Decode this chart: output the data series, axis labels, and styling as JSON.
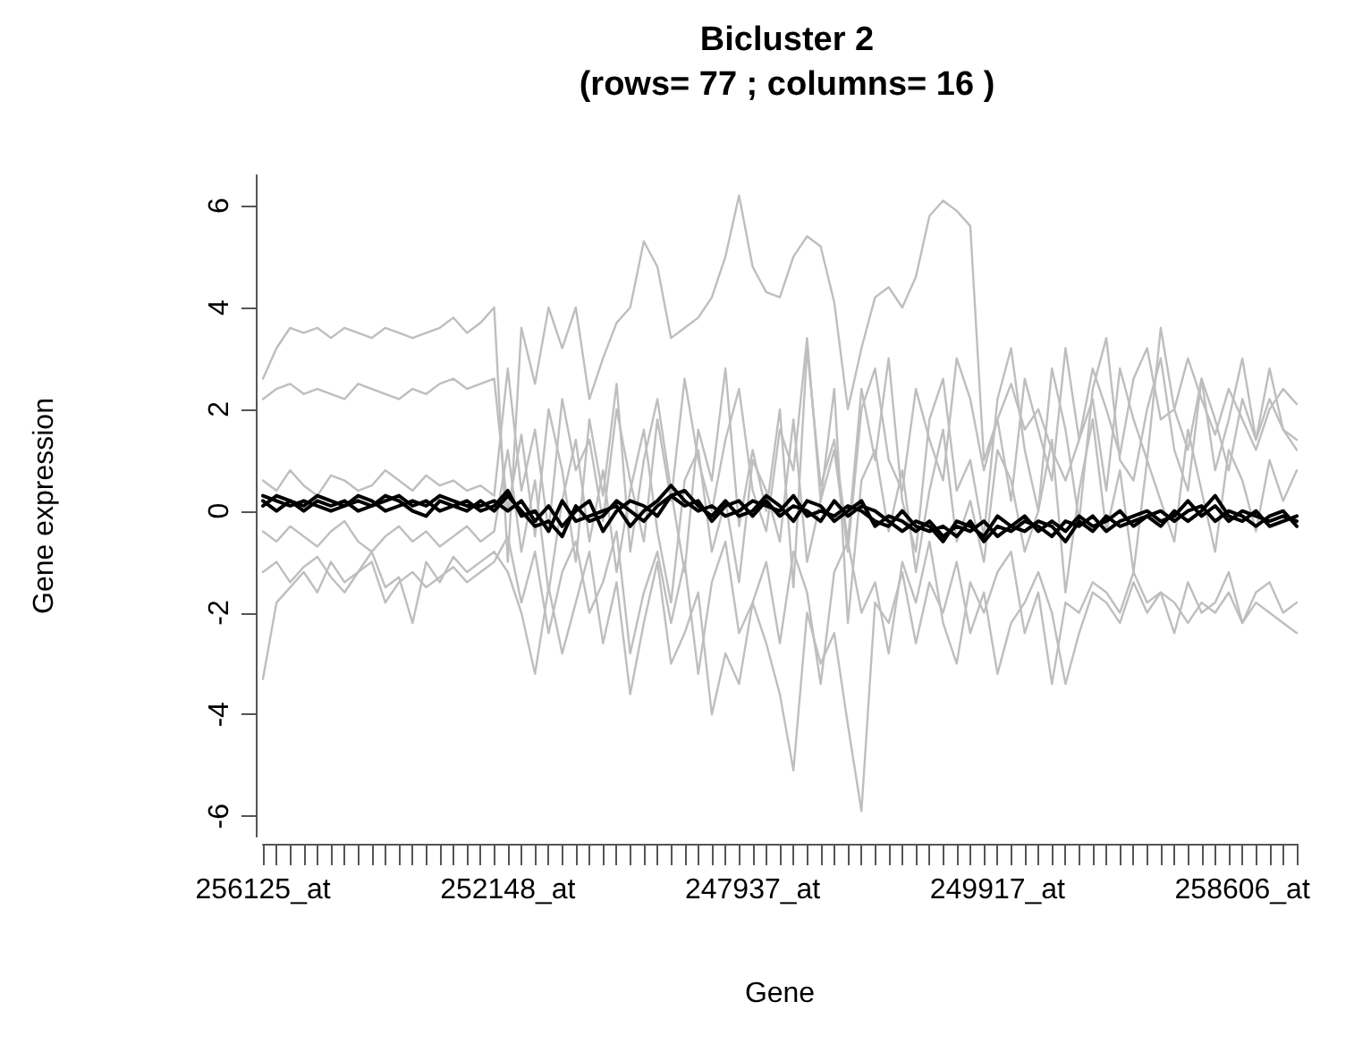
{
  "chart_data": {
    "type": "line",
    "title": "Bicluster 2",
    "subtitle": "(rows= 77 ; columns= 16 )",
    "xlabel": "Gene",
    "ylabel": "Gene expression",
    "categories": [
      "256125_at",
      null,
      null,
      null,
      null,
      null,
      null,
      null,
      null,
      null,
      null,
      null,
      null,
      null,
      null,
      null,
      null,
      null,
      "252148_at",
      null,
      null,
      null,
      null,
      null,
      null,
      null,
      null,
      null,
      null,
      null,
      null,
      null,
      null,
      null,
      null,
      null,
      "247937_at",
      null,
      null,
      null,
      null,
      null,
      null,
      null,
      null,
      null,
      null,
      null,
      null,
      null,
      null,
      null,
      null,
      null,
      "249917_at",
      null,
      null,
      null,
      null,
      null,
      null,
      null,
      null,
      null,
      null,
      null,
      null,
      null,
      null,
      null,
      null,
      null,
      "258606_at",
      null,
      null,
      null,
      null
    ],
    "ylim": [
      -6.4,
      6.6
    ],
    "yticks": [
      -6,
      -4,
      -2,
      0,
      2,
      4,
      6
    ],
    "marker": "none",
    "series": [
      {
        "color": "#bebebe",
        "values": [
          2.6,
          3.2,
          3.6,
          3.5,
          3.6,
          3.4,
          3.6,
          3.5,
          3.4,
          3.6,
          3.5,
          3.4,
          3.5,
          3.6,
          3.8,
          3.5,
          3.7,
          4.0,
          -1.0,
          3.6,
          2.5,
          4.0,
          3.2,
          4.0,
          2.2,
          3.0,
          3.7,
          4.0,
          5.3,
          4.8,
          3.4,
          3.6,
          3.8,
          4.2,
          5.0,
          6.2,
          4.8,
          4.3,
          4.2,
          5.0,
          5.4,
          5.2,
          4.1,
          2.0,
          3.2,
          4.2,
          4.4,
          4.0,
          4.6,
          5.8,
          6.1,
          5.9,
          5.6,
          1.0,
          1.8,
          2.5,
          1.6,
          2.0,
          1.2,
          0.6,
          1.4,
          2.8,
          2.0,
          1.1,
          2.6,
          3.2,
          1.8,
          2.0,
          3.0,
          2.2,
          1.5,
          2.4,
          1.8,
          1.2,
          2.0,
          2.4,
          2.1
        ]
      },
      {
        "color": "#bebebe",
        "values": [
          2.2,
          2.4,
          2.5,
          2.3,
          2.4,
          2.3,
          2.2,
          2.5,
          2.4,
          2.3,
          2.2,
          2.4,
          2.3,
          2.5,
          2.6,
          2.4,
          2.5,
          2.6,
          0.0,
          1.5,
          -0.5,
          2.0,
          0.8,
          -1.0,
          1.8,
          0.3,
          2.5,
          -0.8,
          1.0,
          2.2,
          0.4,
          -1.2,
          1.6,
          0.6,
          2.8,
          -0.3,
          1.2,
          0.0,
          2.0,
          -1.5,
          3.2,
          0.5,
          1.4,
          -0.6,
          2.4,
          1.0,
          3.0,
          0.2,
          -0.8,
          1.8,
          2.6,
          0.4,
          1.0,
          -0.5,
          2.2,
          3.2,
          1.2,
          0.0,
          2.8,
          1.6,
          -0.2,
          2.4,
          3.4,
          1.0,
          0.6,
          2.0,
          3.0,
          1.2,
          0.4,
          2.6,
          1.8,
          0.8,
          2.2,
          1.4,
          2.8,
          1.6,
          1.2
        ]
      },
      {
        "color": "#bebebe",
        "values": [
          -3.3,
          -1.8,
          -1.5,
          -1.2,
          -1.6,
          -1.0,
          -1.4,
          -1.2,
          -0.8,
          -1.5,
          -1.3,
          -2.2,
          -1.0,
          -1.4,
          -0.9,
          -1.2,
          -1.0,
          -0.8,
          -1.2,
          -2.0,
          -3.2,
          -1.5,
          -2.8,
          -1.8,
          -0.8,
          -2.6,
          -1.4,
          -3.6,
          -2.2,
          -1.0,
          -3.0,
          -2.4,
          -1.6,
          -4.0,
          -2.8,
          -3.4,
          -1.8,
          -2.6,
          -3.6,
          -5.1,
          -2.0,
          -3.0,
          -2.4,
          -4.2,
          -5.9,
          -1.8,
          -2.2,
          -1.2,
          -2.6,
          -1.4,
          -2.0,
          -1.0,
          -2.4,
          -1.6,
          -3.2,
          -2.2,
          -1.8,
          -1.2,
          -2.0,
          -3.4,
          -2.4,
          -1.6,
          -1.8,
          -2.2,
          -1.4,
          -2.0,
          -1.6,
          -1.8,
          -2.2,
          -1.8,
          -2.0,
          -1.6,
          -2.2,
          -1.8,
          -2.0,
          -2.2,
          -2.4
        ]
      },
      {
        "color": "#bebebe",
        "values": [
          -0.4,
          -0.6,
          -0.3,
          -0.5,
          -0.7,
          -0.4,
          -0.2,
          -0.6,
          -0.8,
          -0.5,
          -0.3,
          -0.6,
          -0.4,
          -0.7,
          -0.5,
          -0.3,
          -0.6,
          -0.4,
          1.2,
          -0.8,
          0.6,
          -1.6,
          0.2,
          1.4,
          -0.6,
          0.8,
          -1.2,
          0.4,
          1.6,
          -0.4,
          -1.8,
          0.6,
          1.2,
          -0.8,
          0.2,
          -1.4,
          1.0,
          0.4,
          -0.6,
          1.8,
          -1.0,
          0.2,
          2.4,
          -2.2,
          0.6,
          1.2,
          -0.4,
          0.8,
          -1.2,
          0.4,
          1.6,
          -0.6,
          0.2,
          -1.0,
          1.2,
          0.6,
          -0.8,
          0.0,
          1.4,
          -1.6,
          0.4,
          1.8,
          -0.4,
          0.8,
          -1.2,
          1.0,
          0.2,
          -0.6,
          1.6,
          0.4,
          -0.8,
          1.2,
          0.6,
          -0.4,
          1.0,
          0.2,
          0.8
        ]
      },
      {
        "color": "#bebebe",
        "values": [
          -1.2,
          -1.0,
          -1.4,
          -1.1,
          -0.9,
          -1.3,
          -1.6,
          -1.2,
          -1.0,
          -1.8,
          -1.4,
          -1.2,
          -1.5,
          -1.3,
          -1.1,
          -1.4,
          -1.2,
          -1.0,
          -0.5,
          -1.8,
          -0.8,
          -2.4,
          -1.2,
          -0.6,
          -2.0,
          -1.4,
          -0.4,
          -2.8,
          -1.6,
          -0.8,
          -2.2,
          -1.0,
          -3.2,
          -1.4,
          -0.6,
          -2.4,
          -1.8,
          -1.0,
          -2.6,
          -0.8,
          -1.6,
          -3.4,
          -1.2,
          -0.6,
          -2.0,
          -1.4,
          -2.8,
          -1.0,
          -1.8,
          -0.6,
          -2.2,
          -3.0,
          -1.4,
          -2.0,
          -1.2,
          -0.8,
          -2.4,
          -1.6,
          -3.4,
          -1.8,
          -2.0,
          -1.4,
          -1.6,
          -2.0,
          -1.2,
          -1.8,
          -1.6,
          -2.4,
          -1.4,
          -2.0,
          -1.8,
          -1.2,
          -2.2,
          -1.6,
          -1.4,
          -2.0,
          -1.8
        ]
      },
      {
        "color": "#bebebe",
        "values": [
          0.6,
          0.4,
          0.8,
          0.5,
          0.3,
          0.7,
          0.6,
          0.4,
          0.5,
          0.8,
          0.6,
          0.4,
          0.7,
          0.5,
          0.6,
          0.4,
          0.5,
          0.3,
          2.8,
          0.4,
          1.6,
          -0.4,
          2.2,
          0.8,
          1.4,
          -0.2,
          2.0,
          0.6,
          -0.6,
          1.8,
          0.2,
          2.6,
          1.0,
          0.0,
          1.4,
          2.4,
          0.4,
          -0.4,
          1.6,
          0.8,
          3.4,
          0.2,
          1.2,
          -0.8,
          2.0,
          2.8,
          1.0,
          0.4,
          2.4,
          1.4,
          0.6,
          3.0,
          2.2,
          0.8,
          1.8,
          0.2,
          2.6,
          1.6,
          0.6,
          3.2,
          1.4,
          2.2,
          0.4,
          2.8,
          1.8,
          1.0,
          3.6,
          2.0,
          1.2,
          2.6,
          0.8,
          1.8,
          3.0,
          1.4,
          2.2,
          1.6,
          1.4
        ]
      },
      {
        "color": "#000000",
        "values": [
          0.3,
          0.2,
          0.1,
          0.2,
          0.1,
          0.0,
          0.1,
          0.2,
          0.1,
          0.2,
          0.3,
          0.1,
          0.2,
          0.0,
          0.1,
          0.2,
          0.0,
          0.1,
          0.4,
          -0.1,
          0.0,
          -0.4,
          0.2,
          -0.2,
          -0.1,
          0.0,
          0.1,
          -0.3,
          0.0,
          0.2,
          0.5,
          0.2,
          0.0,
          0.1,
          -0.1,
          0.0,
          0.2,
          0.1,
          0.0,
          0.3,
          -0.1,
          0.0,
          -0.1,
          0.1,
          0.0,
          -0.2,
          -0.3,
          0.0,
          -0.3,
          -0.4,
          -0.3,
          -0.5,
          -0.2,
          -0.6,
          -0.3,
          -0.4,
          -0.2,
          -0.3,
          -0.5,
          -0.2,
          -0.3,
          -0.1,
          -0.4,
          -0.2,
          -0.1,
          0.0,
          -0.2,
          -0.1,
          0.2,
          -0.1,
          0.1,
          -0.2,
          0.0,
          -0.1,
          -0.2,
          -0.1,
          -0.2
        ]
      },
      {
        "color": "#000000",
        "values": [
          0.1,
          0.3,
          0.2,
          0.0,
          0.2,
          0.1,
          0.2,
          0.0,
          0.1,
          0.3,
          0.2,
          0.0,
          -0.1,
          0.2,
          0.1,
          0.0,
          0.2,
          0.0,
          0.3,
          0.0,
          -0.3,
          -0.2,
          -0.5,
          0.1,
          -0.2,
          -0.1,
          0.2,
          0.0,
          -0.2,
          0.1,
          0.3,
          0.4,
          0.1,
          -0.1,
          0.2,
          -0.1,
          0.0,
          0.3,
          0.1,
          -0.2,
          0.2,
          0.1,
          -0.2,
          0.0,
          0.2,
          -0.3,
          -0.1,
          -0.2,
          -0.4,
          -0.2,
          -0.5,
          -0.3,
          -0.4,
          -0.2,
          -0.5,
          -0.3,
          -0.1,
          -0.4,
          -0.2,
          -0.4,
          -0.1,
          -0.3,
          -0.2,
          0.0,
          -0.3,
          -0.1,
          0.0,
          -0.2,
          0.0,
          0.1,
          -0.2,
          0.0,
          -0.1,
          -0.3,
          -0.1,
          0.0,
          -0.3
        ]
      },
      {
        "color": "#000000",
        "values": [
          0.2,
          0.0,
          0.2,
          0.1,
          0.3,
          0.2,
          0.1,
          0.3,
          0.2,
          0.0,
          0.1,
          0.2,
          0.1,
          0.3,
          0.2,
          0.1,
          0.1,
          0.2,
          0.0,
          0.2,
          -0.2,
          0.1,
          -0.3,
          0.0,
          0.2,
          -0.4,
          0.0,
          0.2,
          0.1,
          -0.1,
          0.3,
          0.1,
          0.2,
          -0.2,
          0.1,
          0.2,
          -0.1,
          0.2,
          -0.1,
          0.1,
          0.0,
          -0.2,
          0.2,
          -0.1,
          0.1,
          0.0,
          -0.2,
          -0.4,
          -0.2,
          -0.3,
          -0.6,
          -0.2,
          -0.3,
          -0.5,
          -0.1,
          -0.3,
          -0.4,
          -0.2,
          -0.3,
          -0.6,
          -0.2,
          -0.4,
          -0.1,
          -0.3,
          -0.2,
          -0.1,
          -0.3,
          0.0,
          -0.2,
          0.0,
          0.3,
          -0.1,
          -0.2,
          0.0,
          -0.3,
          -0.2,
          -0.1
        ]
      }
    ]
  }
}
